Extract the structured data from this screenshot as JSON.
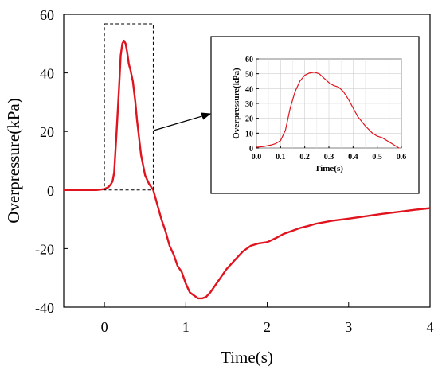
{
  "chart_data": [
    {
      "type": "line",
      "title": "",
      "xlabel": "Time(s)",
      "ylabel": "Overpressure(kPa)",
      "xlim": [
        -0.5,
        4
      ],
      "ylim": [
        -40,
        60
      ],
      "xticks": [
        0,
        1,
        2,
        3,
        4
      ],
      "yticks": [
        -40,
        -20,
        0,
        20,
        40,
        60
      ],
      "xtick_labels": [
        "0",
        "1",
        "2",
        "3",
        "4"
      ],
      "ytick_labels": [
        "-40",
        "-20",
        "0",
        "20",
        "40",
        "60"
      ],
      "grid": false,
      "line_color": "#e0141e",
      "series": [
        {
          "x": [
            -0.5,
            -0.3,
            -0.1,
            0.0,
            0.05,
            0.08,
            0.1,
            0.12,
            0.15,
            0.18,
            0.2,
            0.22,
            0.24,
            0.26,
            0.28,
            0.3,
            0.32,
            0.35,
            0.38,
            0.4,
            0.45,
            0.5,
            0.55,
            0.6,
            0.65,
            0.7,
            0.75,
            0.8,
            0.85,
            0.9,
            0.95,
            1.0,
            1.05,
            1.1,
            1.15,
            1.2,
            1.25,
            1.3,
            1.4,
            1.5,
            1.6,
            1.7,
            1.8,
            1.9,
            2.0,
            2.1,
            2.2,
            2.3,
            2.4,
            2.5,
            2.6,
            2.8,
            3.0,
            3.2,
            3.4,
            3.6,
            3.8,
            4.0
          ],
          "y": [
            0,
            0,
            0,
            0.3,
            1,
            2,
            3,
            6,
            20,
            35,
            46,
            50,
            51,
            50,
            47,
            43,
            41,
            37,
            30,
            24,
            12,
            5,
            2,
            0,
            -5,
            -10,
            -14,
            -19,
            -22,
            -26,
            -28,
            -32,
            -35,
            -36,
            -37,
            -37,
            -36.5,
            -35,
            -31,
            -27,
            -24,
            -21,
            -19,
            -18.2,
            -17.8,
            -16.5,
            -15,
            -14,
            -13,
            -12.3,
            -11.5,
            -10.5,
            -9.8,
            -9,
            -8.2,
            -7.5,
            -6.8,
            -6.2
          ]
        }
      ]
    },
    {
      "type": "line",
      "title": "",
      "xlabel": "Time(s)",
      "ylabel": "Overpressure(kPa)",
      "xlim": [
        0,
        0.6
      ],
      "ylim": [
        0,
        60
      ],
      "xticks": [
        0,
        0.1,
        0.2,
        0.3,
        0.4,
        0.5,
        0.6
      ],
      "yticks": [
        0,
        10,
        20,
        30,
        40,
        50,
        60
      ],
      "xtick_labels": [
        "0.0",
        "0.1",
        "0.2",
        "0.3",
        "0.4",
        "0.5",
        "0.6"
      ],
      "ytick_labels": [
        "0",
        "10",
        "20",
        "30",
        "40",
        "50",
        "60"
      ],
      "grid": true,
      "line_color": "#e0141e",
      "series": [
        {
          "x": [
            0.0,
            0.03,
            0.06,
            0.08,
            0.1,
            0.12,
            0.14,
            0.16,
            0.18,
            0.2,
            0.22,
            0.24,
            0.26,
            0.28,
            0.3,
            0.32,
            0.34,
            0.36,
            0.38,
            0.4,
            0.42,
            0.45,
            0.48,
            0.5,
            0.52,
            0.55,
            0.57,
            0.59
          ],
          "y": [
            0.5,
            1,
            2,
            3,
            5,
            12,
            27,
            38,
            45,
            49,
            50.5,
            51,
            50,
            47,
            44,
            42,
            41,
            38,
            33,
            27,
            21,
            15,
            10,
            8,
            7,
            4,
            2,
            0
          ]
        }
      ]
    }
  ]
}
